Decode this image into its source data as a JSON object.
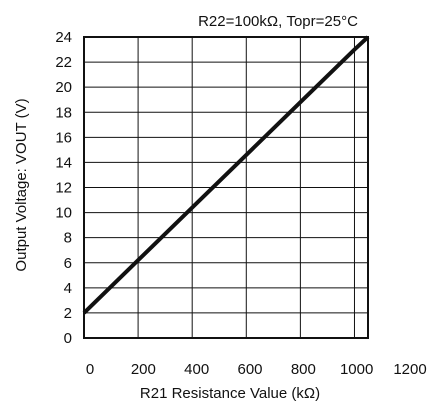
{
  "chart_data": {
    "type": "line",
    "annotation": "R22=100kΩ, Topr=25°C",
    "xlabel": "R21 Resistance Value (kΩ)",
    "ylabel": "Output Voltage: VOUT (V)",
    "xlim": [
      0,
      1200
    ],
    "ylim": [
      0,
      24
    ],
    "x_ticks": [
      0,
      200,
      400,
      600,
      800,
      1000,
      1200
    ],
    "y_ticks": [
      0,
      2,
      4,
      6,
      8,
      10,
      12,
      14,
      16,
      18,
      20,
      22,
      24
    ],
    "grid": true,
    "series": [
      {
        "x": [
          0,
          200,
          400,
          600,
          800,
          1000,
          1050
        ],
        "y": [
          2.0,
          6.2,
          10.4,
          14.6,
          18.8,
          23.0,
          24.0
        ]
      }
    ],
    "colors": {
      "line": "#111111",
      "grid": "#111111",
      "background": "#ffffff"
    }
  }
}
